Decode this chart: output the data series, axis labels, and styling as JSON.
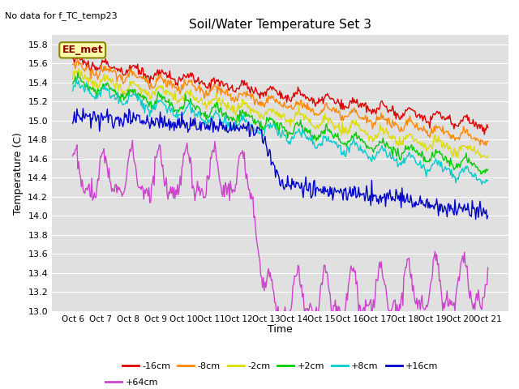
{
  "title": "Soil/Water Temperature Set 3",
  "ylabel": "Temperature (C)",
  "xlabel": "Time",
  "subtitle": "No data for f_TC_temp23",
  "annotation": "EE_met",
  "ylim": [
    13.0,
    15.9
  ],
  "yticks": [
    13.0,
    13.2,
    13.4,
    13.6,
    13.8,
    14.0,
    14.2,
    14.4,
    14.6,
    14.8,
    15.0,
    15.2,
    15.4,
    15.6,
    15.8
  ],
  "xtick_labels": [
    "Oct 6",
    "Oct 7",
    "Oct 8",
    "Oct 9",
    "Oct 10",
    "Oct 11",
    "Oct 12",
    "Oct 13",
    "Oct 14",
    "Oct 15",
    "Oct 16",
    "Oct 17",
    "Oct 18",
    "Oct 19",
    "Oct 20",
    "Oct 21"
  ],
  "series_order": [
    "-16cm",
    "-8cm",
    "-2cm",
    "+2cm",
    "+8cm",
    "+16cm",
    "+64cm"
  ],
  "series_colors": {
    "-16cm": "#dd0000",
    "-8cm": "#ff8800",
    "-2cm": "#dddd00",
    "+2cm": "#00cc00",
    "+8cm": "#00cccc",
    "+16cm": "#0000cc",
    "+64cm": "#cc44cc"
  },
  "bg_color": "#e0e0e0",
  "grid_color": "#ffffff",
  "fig_bg": "#ffffff"
}
